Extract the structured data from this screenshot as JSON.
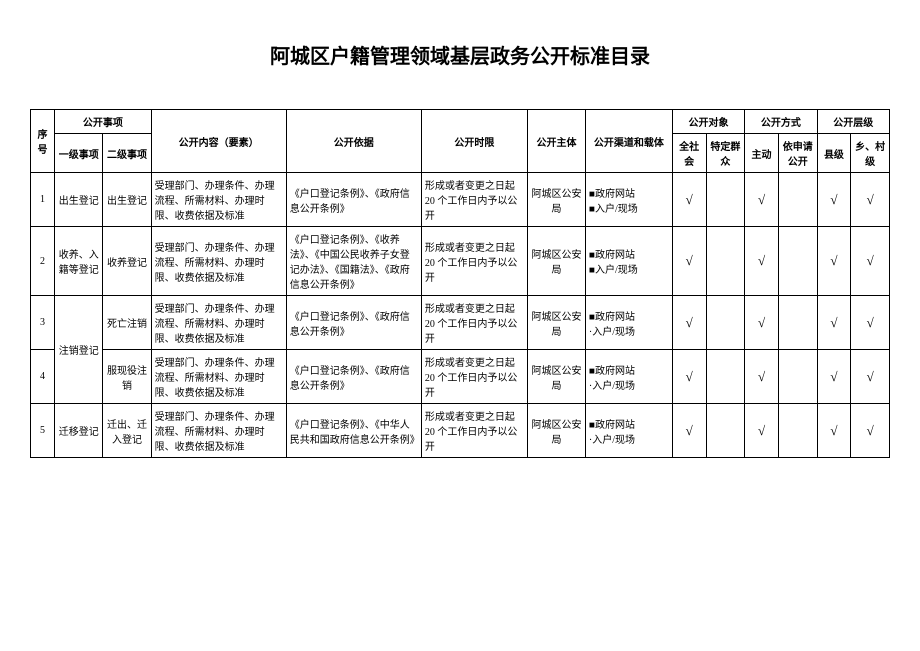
{
  "title": "阿城区户籍管理领域基层政务公开标准目录",
  "headers": {
    "seq": "序号",
    "matter": "公开事项",
    "level1": "一级事项",
    "level2": "二级事项",
    "content": "公开内容（要素）",
    "basis": "公开依据",
    "time": "公开时限",
    "subject": "公开主体",
    "channel": "公开渠道和载体",
    "object": "公开对象",
    "obj_all": "全社会",
    "obj_spec": "特定群众",
    "method": "公开方式",
    "m_active": "主动",
    "m_apply": "依申请公开",
    "level": "公开层级",
    "lv_county": "县级",
    "lv_village": "乡、村级"
  },
  "check": "√",
  "rows": [
    {
      "seq": "1",
      "l1": "出生登记",
      "l2": "出生登记",
      "content": "受理部门、办理条件、办理流程、所需材料、办理时限、收费依据及标准",
      "basis": "《户口登记条例》、《政府信息公开条例》",
      "time": "形成或者变更之日起20 个工作日内予以公开",
      "subject": "阿城区公安局",
      "channel": "■政府网站\n■入户/现场",
      "obj_all": true,
      "obj_spec": false,
      "m_active": true,
      "m_apply": false,
      "lv_county": true,
      "lv_village": true
    },
    {
      "seq": "2",
      "l1": "收养、入籍等登记",
      "l2": "收养登记",
      "content": "受理部门、办理条件、办理流程、所需材料、办理时限、收费依据及标准",
      "basis": "《户口登记条例》、《收养法》、《中国公民收养子女登记办法》、《国籍法》、《政府信息公开条例》",
      "time": "形成或者变更之日起20 个工作日内予以公开",
      "subject": "阿城区公安局",
      "channel": "■政府网站\n■入户/现场",
      "obj_all": true,
      "obj_spec": false,
      "m_active": true,
      "m_apply": false,
      "lv_county": true,
      "lv_village": true
    },
    {
      "seq": "3",
      "l1": "注销登记",
      "l1_rowspan": 2,
      "l2": "死亡注销",
      "content": "受理部门、办理条件、办理流程、所需材料、办理时限、收费依据及标准",
      "basis": "《户口登记条例》、《政府信息公开条例》",
      "time": "形成或者变更之日起20 个工作日内予以公开",
      "subject": "阿城区公安局",
      "channel": "■政府网站\n·入户/现场",
      "obj_all": true,
      "obj_spec": false,
      "m_active": true,
      "m_apply": false,
      "lv_county": true,
      "lv_village": true
    },
    {
      "seq": "4",
      "l1_skip": true,
      "l2": "服现役注销",
      "content": "受理部门、办理条件、办理流程、所需材料、办理时限、收费依据及标准",
      "basis": "《户口登记条例》、《政府信息公开条例》",
      "time": "形成或者变更之日起20 个工作日内予以公开",
      "subject": "阿城区公安局",
      "channel": "■政府网站\n·入户/现场",
      "obj_all": true,
      "obj_spec": false,
      "m_active": true,
      "m_apply": false,
      "lv_county": true,
      "lv_village": true
    },
    {
      "seq": "5",
      "l1": "迁移登记",
      "l2": "迁出、迁入登记",
      "content": "受理部门、办理条件、办理流程、所需材料、办理时限、收费依据及标准",
      "basis": "《户口登记条例》、《中华人民共和国政府信息公开条例》",
      "time": "形成或者变更之日起20 个工作日内予以公开",
      "subject": "阿城区公安局",
      "channel": "■政府网站\n·入户/现场",
      "obj_all": true,
      "obj_spec": false,
      "m_active": true,
      "m_apply": false,
      "lv_county": true,
      "lv_village": true
    }
  ]
}
